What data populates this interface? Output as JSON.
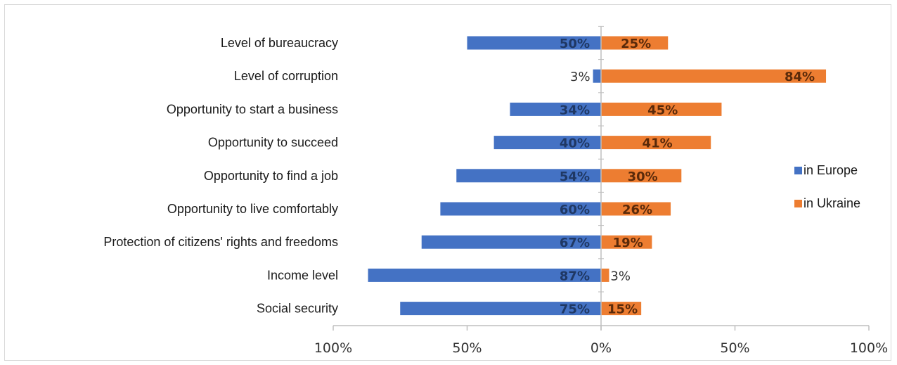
{
  "chart_data": {
    "type": "bar",
    "orientation": "horizontal-diverging",
    "categories": [
      "Level of bureaucracy",
      "Level of corruption",
      "Opportunity to start a business",
      "Opportunity to succeed",
      "Opportunity to find a job",
      "Opportunity to live comfortably",
      "Protection of citizens' rights and freedoms",
      "Income level",
      "Social security"
    ],
    "series": [
      {
        "name": "in Europe",
        "values": [
          50,
          3,
          34,
          40,
          54,
          60,
          67,
          87,
          75
        ],
        "color": "#4472c4",
        "direction": "left"
      },
      {
        "name": "in Ukraine",
        "values": [
          25,
          84,
          45,
          41,
          30,
          26,
          19,
          3,
          15
        ],
        "color": "#ed7d31",
        "direction": "right"
      }
    ],
    "xlim": [
      -100,
      100
    ],
    "xticks": [
      "100%",
      "50%",
      "0%",
      "50%",
      "100%"
    ],
    "legend_position": "right",
    "grid": false,
    "title": "",
    "xlabel": "",
    "ylabel": ""
  }
}
